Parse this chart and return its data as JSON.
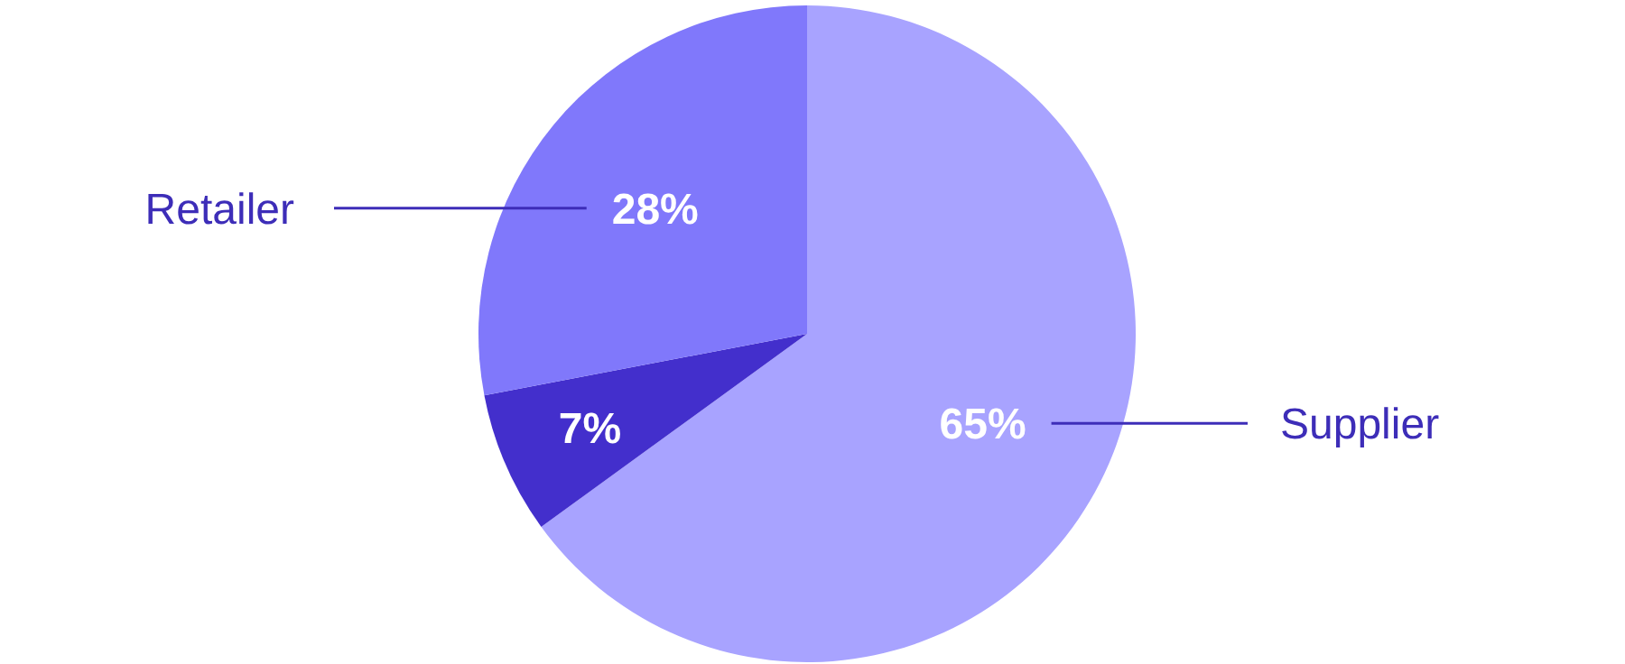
{
  "chart_data": {
    "type": "pie",
    "categories": [
      "Supplier",
      null,
      "Retailer"
    ],
    "values": [
      65,
      7,
      28
    ],
    "colors": [
      "#a8a3ff",
      "#432fcc",
      "#8078fb"
    ],
    "value_labels": [
      "65%",
      "7%",
      "28%"
    ]
  }
}
